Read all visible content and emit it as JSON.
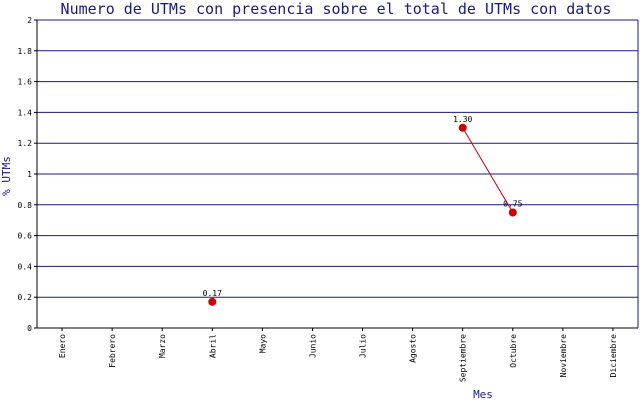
{
  "chart_data": {
    "type": "line",
    "title": "Numero de UTMs con presencia sobre el total de UTMs con datos",
    "xlabel": "Mes",
    "ylabel": "% UTMs",
    "categories": [
      "Enero",
      "Febrero",
      "Marzo",
      "Abril",
      "Mayo",
      "Junio",
      "Julio",
      "Agosto",
      "Septiembre",
      "Octubre",
      "Noviembre",
      "Diciembre"
    ],
    "yticks": [
      "0",
      "0.2",
      "0.4",
      "0.6",
      "0.8",
      "1",
      "1.2",
      "1.4",
      "1.6",
      "1.8",
      "2"
    ],
    "ylim": [
      0,
      2
    ],
    "grid": true,
    "series": [
      {
        "values": [
          null,
          null,
          null,
          0.17,
          null,
          null,
          null,
          null,
          1.3,
          0.75,
          null,
          null
        ],
        "labels": [
          "",
          "",
          "",
          "0.17",
          "",
          "",
          "",
          "",
          "1.30",
          "0.75",
          "",
          ""
        ]
      }
    ],
    "colors": {
      "line": "#cc0000",
      "grid": "#1a1a80",
      "text": "#1a1a80"
    }
  }
}
